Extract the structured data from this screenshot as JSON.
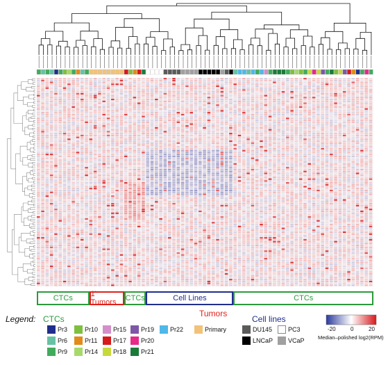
{
  "chart_data": {
    "type": "heatmap",
    "title": "",
    "colorbar": {
      "label": "Median–polished log2(RPM)",
      "ticks": [
        "-20",
        "0",
        "20"
      ],
      "range": [
        -20,
        20
      ],
      "colors": {
        "low": "#2b3a9c",
        "mid": "#ffffff",
        "high": "#d7191c"
      }
    },
    "dendrogram_top": true,
    "dendrogram_left": true,
    "groups": [
      {
        "label": "CTCs",
        "color": "#2a9a3b",
        "start": 0,
        "end": 12
      },
      {
        "label": "1' Tumors",
        "color": "#e0201a",
        "start": 12,
        "end": 20
      },
      {
        "label": "CTCs",
        "color": "#2a9a3b",
        "start": 20,
        "end": 25
      },
      {
        "label": "Cell Lines",
        "color": "#1f2e8c",
        "start": 25,
        "end": 45
      },
      {
        "label": "CTCs",
        "color": "#2a9a3b",
        "start": 45,
        "end": 77
      }
    ],
    "legend_header": "Legend:",
    "legend_sections": [
      {
        "title": "CTCs",
        "title_color": "#2a9a3b",
        "items": [
          {
            "label": "Pr3",
            "color": "#1f2e8c"
          },
          {
            "label": "Pr6",
            "color": "#66c2a4"
          },
          {
            "label": "Pr9",
            "color": "#41ab5d"
          },
          {
            "label": "Pr10",
            "color": "#7fbf3f"
          },
          {
            "label": "Pr11",
            "color": "#e08b1a"
          },
          {
            "label": "Pr14",
            "color": "#a6d96a"
          },
          {
            "label": "Pr15",
            "color": "#d48fc9"
          },
          {
            "label": "Pr17",
            "color": "#d7191c"
          },
          {
            "label": "Pr18",
            "color": "#c7d93a"
          },
          {
            "label": "Pr19",
            "color": "#7e57a6"
          },
          {
            "label": "Pr20",
            "color": "#e7298a"
          },
          {
            "label": "Pr21",
            "color": "#1a7a3a"
          },
          {
            "label": "Pr22",
            "color": "#4fb8e8"
          }
        ]
      },
      {
        "title": "Tumors",
        "title_color": "#e0201a",
        "items": [
          {
            "label": "Primary",
            "color": "#f2c27a"
          }
        ]
      },
      {
        "title": "Cell lines",
        "title_color": "#1f2e8c",
        "items": [
          {
            "label": "DU145",
            "color": "#5a5a5a"
          },
          {
            "label": "LNCaP",
            "color": "#000000"
          },
          {
            "label": "PC3",
            "color": "#ffffff"
          },
          {
            "label": "VCaP",
            "color": "#a0a0a0"
          }
        ]
      }
    ],
    "column_colors": [
      "#41ab5d",
      "#66c2a4",
      "#41ab5d",
      "#66c2a4",
      "#1f2e8c",
      "#41ab5d",
      "#7fbf3f",
      "#a6d96a",
      "#41ab5d",
      "#e08b1a",
      "#66c2a4",
      "#41ab5d",
      "#f2c27a",
      "#f2c27a",
      "#f2c27a",
      "#f2c27a",
      "#f2c27a",
      "#f2c27a",
      "#f2c27a",
      "#f2c27a",
      "#d7191c",
      "#7fbf3f",
      "#e08b1a",
      "#d7191c",
      "#1a7a3a",
      "#ffffff",
      "#ffffff",
      "#ffffff",
      "#ffffff",
      "#5a5a5a",
      "#5a5a5a",
      "#5a5a5a",
      "#5a5a5a",
      "#a0a0a0",
      "#a0a0a0",
      "#a0a0a0",
      "#a0a0a0",
      "#000000",
      "#000000",
      "#000000",
      "#000000",
      "#000000",
      "#a0a0a0",
      "#5a5a5a",
      "#000000",
      "#66c2a4",
      "#4fb8e8",
      "#4fb8e8",
      "#66c2a4",
      "#4fb8e8",
      "#41ab5d",
      "#4fb8e8",
      "#d48fc9",
      "#41ab5d",
      "#1a7a3a",
      "#1a7a3a",
      "#1a7a3a",
      "#41ab5d",
      "#7fbf3f",
      "#a6d96a",
      "#7fbf3f",
      "#41ab5d",
      "#c7d93a",
      "#e7298a",
      "#c7d93a",
      "#7e57a6",
      "#41ab5d",
      "#1a7a3a",
      "#7fbf3f",
      "#c7d93a",
      "#7e57a6",
      "#d7191c",
      "#e08b1a",
      "#1f2e8c",
      "#41ab5d",
      "#e7298a",
      "#41ab5d"
    ],
    "n_rows": 110
  }
}
